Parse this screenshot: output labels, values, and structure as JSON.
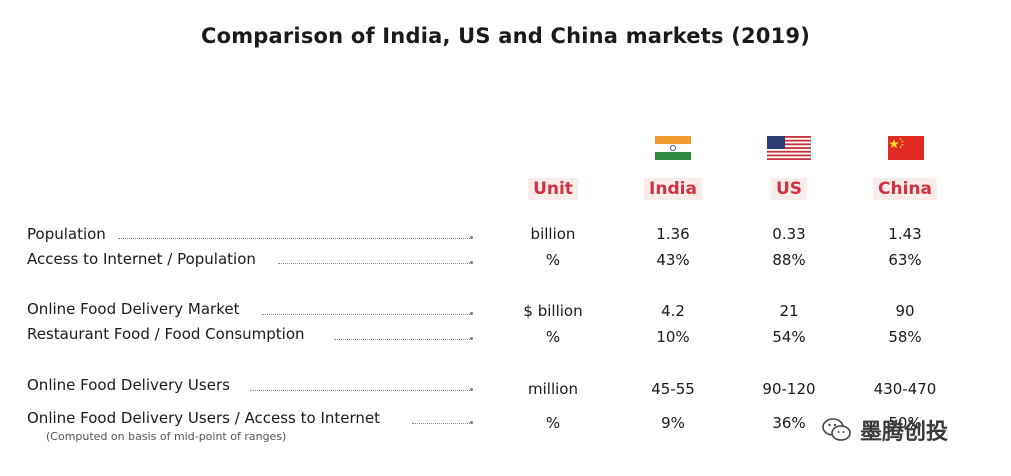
{
  "title": "Comparison of India, US and China markets (2019)",
  "headers": {
    "unit": "Unit",
    "india": "India",
    "us": "US",
    "china": "China"
  },
  "rows": [
    {
      "label": "Population",
      "unit": "billion",
      "india": "1.36",
      "us": "0.33",
      "china": "1.43"
    },
    {
      "label": "Access to Internet / Population",
      "unit": "%",
      "india": "43%",
      "us": "88%",
      "china": "63%"
    },
    {
      "label": "Online Food Delivery Market",
      "unit": "$ billion",
      "india": "4.2",
      "us": "21",
      "china": "90"
    },
    {
      "label": "Restaurant Food / Food Consumption",
      "unit": "%",
      "india": "10%",
      "us": "54%",
      "china": "58%"
    },
    {
      "label": "Online Food Delivery Users",
      "unit": "million",
      "india": "45-55",
      "us": "90-120",
      "china": "430-470"
    },
    {
      "label": "Online Food Delivery Users / Access to Internet",
      "unit": "%",
      "india": "9%",
      "us": "36%",
      "china": "50%"
    }
  ],
  "note": "(Computed on basis of mid-point of ranges)",
  "watermark": "墨腾创投",
  "colors": {
    "accent": "#d2323f",
    "header_bg": "#fbecec"
  },
  "flags": [
    "india-flag",
    "us-flag",
    "china-flag"
  ]
}
